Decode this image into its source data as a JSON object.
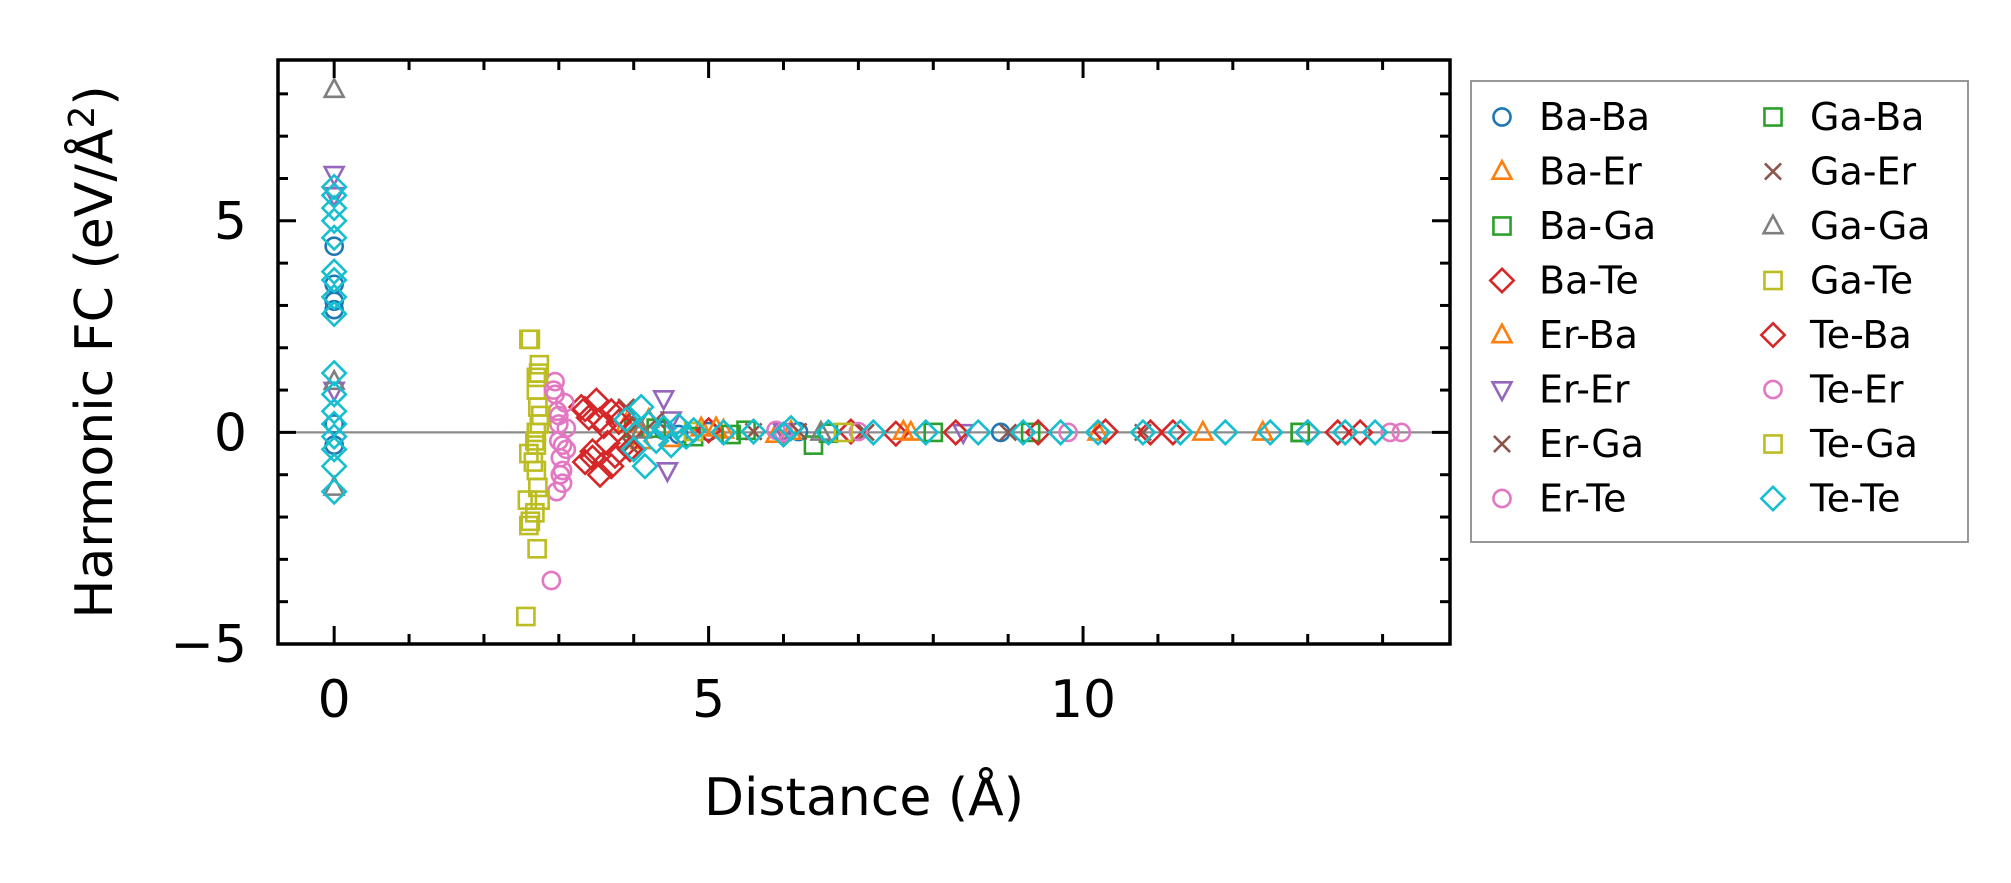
{
  "chart_data": {
    "type": "scatter",
    "title": "",
    "xlabel": "Distance (Å)",
    "ylabel_prefix": "Harmonic FC (eV/Å",
    "ylabel_exp": "2",
    "ylabel_suffix": ")",
    "xlim": [
      -0.75,
      14.9
    ],
    "ylim": [
      -5.0,
      8.8
    ],
    "xticks": [
      0,
      5,
      10
    ],
    "xtick_labels": [
      "0",
      "5",
      "10"
    ],
    "yticks": [
      -5,
      0,
      5
    ],
    "ytick_labels": [
      "−5",
      "0",
      "5"
    ],
    "zero_line": true,
    "legend_position": "outside-right",
    "legend_columns": 2,
    "series": [
      {
        "name": "Ba-Ba",
        "marker": "circle",
        "color": "#1f77b4",
        "points": [
          [
            0,
            3.5
          ],
          [
            0,
            3.1
          ],
          [
            0,
            2.9
          ],
          [
            0,
            4.4
          ],
          [
            0,
            0.2
          ],
          [
            0,
            -0.3
          ],
          [
            4.4,
            0.05
          ],
          [
            4.6,
            -0.05
          ],
          [
            5.0,
            0.02
          ],
          [
            6.2,
            0.02
          ],
          [
            8.9,
            0.0
          ]
        ]
      },
      {
        "name": "Ba-Er",
        "marker": "triangle-up",
        "color": "#ff7f0e",
        "points": [
          [
            3.9,
            0.2
          ],
          [
            4.1,
            -0.2
          ],
          [
            4.9,
            0.1
          ],
          [
            5.2,
            0.05
          ],
          [
            5.9,
            -0.05
          ],
          [
            7.6,
            0.02
          ],
          [
            10.2,
            0.0
          ],
          [
            12.4,
            0.0
          ]
        ]
      },
      {
        "name": "Ba-Ga",
        "marker": "square",
        "color": "#2ca02c",
        "points": [
          [
            4.0,
            0.1
          ],
          [
            4.8,
            -0.1
          ],
          [
            5.5,
            0.05
          ],
          [
            6.6,
            -0.02
          ],
          [
            9.3,
            0.0
          ],
          [
            12.9,
            0.0
          ]
        ]
      },
      {
        "name": "Ba-Te",
        "marker": "diamond",
        "color": "#d62728",
        "points": [
          [
            3.3,
            0.6
          ],
          [
            3.35,
            -0.7
          ],
          [
            3.4,
            0.35
          ],
          [
            3.45,
            -0.45
          ],
          [
            3.5,
            0.75
          ],
          [
            3.55,
            -1.0
          ],
          [
            3.6,
            0.15
          ],
          [
            3.65,
            -0.25
          ],
          [
            3.7,
            0.5
          ],
          [
            3.75,
            -0.55
          ],
          [
            3.8,
            0.25
          ],
          [
            3.9,
            -0.3
          ],
          [
            4.0,
            0.1
          ],
          [
            5.0,
            0.05
          ],
          [
            6.9,
            0.02
          ],
          [
            7.5,
            -0.03
          ],
          [
            9.4,
            0.0
          ],
          [
            10.3,
            0.02
          ],
          [
            11.2,
            0.0
          ],
          [
            13.0,
            0.0
          ],
          [
            13.4,
            0.0
          ]
        ]
      },
      {
        "name": "Er-Ba",
        "marker": "triangle-up",
        "color": "#ff7f0e",
        "points": [
          [
            4.2,
            0.3
          ],
          [
            4.5,
            -0.15
          ],
          [
            5.1,
            0.1
          ],
          [
            6.1,
            0.02
          ],
          [
            7.7,
            0.0
          ],
          [
            11.6,
            0.0
          ]
        ]
      },
      {
        "name": "Er-Er",
        "marker": "triangle-down",
        "color": "#9467bd",
        "points": [
          [
            0,
            6.1
          ],
          [
            0,
            5.6
          ],
          [
            0,
            1.0
          ],
          [
            4.4,
            0.8
          ],
          [
            4.45,
            -0.9
          ],
          [
            4.5,
            0.3
          ],
          [
            6.0,
            0.02
          ],
          [
            8.4,
            0.0
          ]
        ]
      },
      {
        "name": "Er-Ga",
        "marker": "x",
        "color": "#8c564b",
        "points": [
          [
            3.9,
            0.6
          ],
          [
            3.95,
            -0.3
          ],
          [
            4.05,
            0.2
          ],
          [
            5.6,
            0.02
          ],
          [
            7.1,
            0.0
          ],
          [
            10.8,
            0.0
          ]
        ]
      },
      {
        "name": "Er-Te",
        "marker": "circle",
        "color": "#e377c2",
        "points": [
          [
            2.95,
            1.2
          ],
          [
            2.95,
            0.9
          ],
          [
            2.98,
            0.5
          ],
          [
            3.0,
            0.2
          ],
          [
            3.0,
            -0.2
          ],
          [
            3.02,
            -0.6
          ],
          [
            3.05,
            -0.9
          ],
          [
            3.05,
            -1.2
          ],
          [
            2.97,
            -1.4
          ],
          [
            3.08,
            0.7
          ],
          [
            3.1,
            -0.4
          ],
          [
            2.9,
            -3.5
          ],
          [
            5.9,
            0.05
          ],
          [
            7.0,
            0.02
          ],
          [
            9.8,
            0.0
          ],
          [
            14.1,
            0.0
          ]
        ]
      },
      {
        "name": "Ga-Ba",
        "marker": "square",
        "color": "#2ca02c",
        "points": [
          [
            6.4,
            -0.3
          ],
          [
            4.3,
            0.1
          ],
          [
            5.3,
            -0.05
          ],
          [
            8.0,
            0.0
          ],
          [
            12.9,
            0.0
          ]
        ]
      },
      {
        "name": "Ga-Er",
        "marker": "x",
        "color": "#8c564b",
        "points": [
          [
            4.0,
            -0.2
          ],
          [
            4.3,
            0.3
          ],
          [
            6.2,
            0.02
          ],
          [
            9.0,
            0.0
          ]
        ]
      },
      {
        "name": "Ga-Ga",
        "marker": "triangle-up",
        "color": "#7f7f7f",
        "points": [
          [
            0,
            8.1
          ],
          [
            0,
            1.2
          ],
          [
            0,
            -1.3
          ],
          [
            4.1,
            0.05
          ],
          [
            6.5,
            0.0
          ]
        ]
      },
      {
        "name": "Ga-Te",
        "marker": "square",
        "color": "#bcbd22",
        "points": [
          [
            2.6,
            2.2
          ],
          [
            2.6,
            -0.5
          ],
          [
            2.58,
            -1.6
          ],
          [
            2.62,
            -2.1
          ],
          [
            2.56,
            -4.35
          ],
          [
            2.7,
            1.3
          ],
          [
            2.7,
            1.0
          ],
          [
            2.72,
            0.6
          ],
          [
            2.74,
            0.2
          ],
          [
            2.68,
            -0.2
          ],
          [
            2.7,
            -0.9
          ],
          [
            2.72,
            -1.3
          ],
          [
            2.68,
            -1.9
          ],
          [
            2.71,
            -2.75
          ],
          [
            2.74,
            1.6
          ],
          [
            2.76,
            0.4
          ],
          [
            2.66,
            -0.7
          ],
          [
            4.8,
            0.02
          ],
          [
            6.8,
            0.0
          ]
        ]
      },
      {
        "name": "Te-Ba",
        "marker": "diamond",
        "color": "#d62728",
        "points": [
          [
            3.35,
            0.55
          ],
          [
            3.45,
            -0.6
          ],
          [
            3.55,
            0.3
          ],
          [
            3.7,
            -0.8
          ],
          [
            3.8,
            0.45
          ],
          [
            3.95,
            -0.4
          ],
          [
            8.3,
            0.0
          ],
          [
            10.9,
            0.0
          ],
          [
            13.7,
            0.0
          ]
        ]
      },
      {
        "name": "Te-Er",
        "marker": "circle",
        "color": "#e377c2",
        "points": [
          [
            2.93,
            1.0
          ],
          [
            3.0,
            0.4
          ],
          [
            3.05,
            -0.3
          ],
          [
            3.02,
            -1.0
          ],
          [
            3.1,
            0.1
          ],
          [
            6.0,
            0.0
          ],
          [
            14.25,
            0.0
          ]
        ]
      },
      {
        "name": "Te-Ga",
        "marker": "square",
        "color": "#bcbd22",
        "points": [
          [
            2.62,
            2.2
          ],
          [
            2.6,
            -2.2
          ],
          [
            2.73,
            1.4
          ],
          [
            2.75,
            -1.6
          ],
          [
            2.7,
            0.0
          ],
          [
            2.7,
            -0.3
          ]
        ]
      },
      {
        "name": "Te-Te",
        "marker": "diamond",
        "color": "#17becf",
        "points": [
          [
            0,
            5.8
          ],
          [
            0,
            5.6
          ],
          [
            0,
            5.3
          ],
          [
            0,
            5.0
          ],
          [
            0,
            4.6
          ],
          [
            0,
            3.8
          ],
          [
            0,
            3.6
          ],
          [
            0,
            3.2
          ],
          [
            0,
            2.8
          ],
          [
            0,
            1.4
          ],
          [
            0,
            0.9
          ],
          [
            0,
            0.5
          ],
          [
            0,
            0.2
          ],
          [
            0,
            -0.1
          ],
          [
            0,
            -0.4
          ],
          [
            0,
            -0.8
          ],
          [
            0,
            -1.4
          ],
          [
            3.9,
            0.3
          ],
          [
            4.0,
            -0.4
          ],
          [
            4.1,
            0.6
          ],
          [
            4.15,
            -0.8
          ],
          [
            4.2,
            0.2
          ],
          [
            4.3,
            -0.2
          ],
          [
            4.4,
            0.1
          ],
          [
            4.5,
            -0.3
          ],
          [
            4.6,
            0.15
          ],
          [
            4.7,
            -0.1
          ],
          [
            4.8,
            0.05
          ],
          [
            5.2,
            0.0
          ],
          [
            5.6,
            0.02
          ],
          [
            6.0,
            -0.05
          ],
          [
            6.1,
            0.1
          ],
          [
            6.6,
            0.0
          ],
          [
            7.2,
            0.0
          ],
          [
            7.9,
            0.0
          ],
          [
            8.6,
            0.0
          ],
          [
            9.2,
            0.0
          ],
          [
            9.7,
            0.0
          ],
          [
            10.2,
            0.0
          ],
          [
            10.8,
            0.0
          ],
          [
            11.3,
            0.0
          ],
          [
            11.9,
            0.0
          ],
          [
            12.5,
            0.0
          ],
          [
            13.0,
            0.0
          ],
          [
            13.5,
            0.0
          ],
          [
            13.9,
            0.0
          ]
        ]
      }
    ]
  }
}
